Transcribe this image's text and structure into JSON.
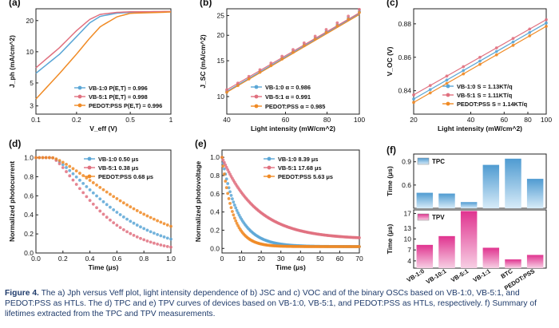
{
  "colors": {
    "blue": "#5aa6d6",
    "red": "#e0707f",
    "orange": "#f08a24",
    "axis": "#222222"
  },
  "caption": {
    "label": "Figure 4.",
    "text": "The a) Jph versus Veff plot, light intensity dependence of b) JSC and c) VOC and of the binary OSCs based on VB-1:0, VB-5:1, and PEDOT:PSS as HTLs. The d) TPC and e) TPV curves of devices based on VB-1:0, VB-5:1, and PEDOT:PSS as HTLs, respectively. f) Summary of lifetimes extracted from the TPC and TPV measurements."
  },
  "chart_data": [
    {
      "id": "a",
      "panel_label": "(a)",
      "type": "line",
      "xlabel": "V_eff (V)",
      "ylabel": "J_ph (mA/cm^2)",
      "xscale": "log",
      "yscale": "log",
      "xlim": [
        0.1,
        1
      ],
      "ylim": [
        2.5,
        26
      ],
      "xticks": [
        "0.1",
        "0.2",
        "0.5",
        "1"
      ],
      "yticks": [
        "3",
        "5",
        "10",
        "20"
      ],
      "series": [
        {
          "name": "VB-1:0",
          "legend": "VB-1:0  P(E,T) = 0.996",
          "color": "blue",
          "x": [
            0.1,
            0.15,
            0.2,
            0.25,
            0.3,
            0.4,
            0.5,
            1.0
          ],
          "y": [
            6.2,
            9.5,
            14.0,
            19.0,
            22.0,
            23.6,
            24.0,
            24.3
          ]
        },
        {
          "name": "VB-5:1",
          "legend": "VB-5:1  P(E,T) = 0.998",
          "color": "red",
          "x": [
            0.1,
            0.15,
            0.2,
            0.25,
            0.3,
            0.4,
            0.5,
            1.0
          ],
          "y": [
            7.0,
            11.0,
            16.0,
            20.5,
            23.0,
            24.0,
            24.3,
            24.5
          ]
        },
        {
          "name": "PEDOT:PSS",
          "legend": "PEDOT:PSS  P(E,T) = 0.996",
          "color": "orange",
          "x": [
            0.1,
            0.15,
            0.2,
            0.25,
            0.3,
            0.4,
            0.5,
            1.0
          ],
          "y": [
            3.5,
            6.2,
            9.5,
            13.5,
            17.5,
            21.8,
            23.5,
            24.2
          ]
        }
      ]
    },
    {
      "id": "b",
      "panel_label": "(b)",
      "type": "line",
      "xlabel": "Light intensity (mW/cm^2)",
      "ylabel": "J_SC (mA/cm^2)",
      "xscale": "log",
      "yscale": "log",
      "xlim": [
        40,
        100
      ],
      "ylim": [
        8.2,
        27
      ],
      "xticks": [
        "40",
        "60",
        "80",
        "100"
      ],
      "yticks": [
        "10",
        "15",
        "20",
        "25"
      ],
      "series": [
        {
          "name": "VB-1:0",
          "legend": "VB-1:0  α = 0.986",
          "color": "blue",
          "alpha": 0.986,
          "x": [
            40,
            100
          ],
          "y": [
            10.6,
            25.6
          ]
        },
        {
          "name": "VB-5:1",
          "legend": "VB-5:1  α = 0.991",
          "color": "red",
          "alpha": 0.991,
          "x": [
            40,
            100
          ],
          "y": [
            10.8,
            25.8
          ]
        },
        {
          "name": "PEDOT:PSS",
          "legend": "PEDOT:PSS  α = 0.985",
          "color": "orange",
          "alpha": 0.985,
          "x": [
            40,
            100
          ],
          "y": [
            10.5,
            25.3
          ]
        }
      ]
    },
    {
      "id": "c",
      "panel_label": "(c)",
      "type": "line",
      "xlabel": "Light intensity (mW/cm^2)",
      "ylabel": "V_OC (V)",
      "xscale": "log",
      "yscale": "linear",
      "xlim": [
        20,
        100
      ],
      "ylim": [
        0.826,
        0.889
      ],
      "xticks": [
        "20",
        "40",
        "60",
        "80",
        "100"
      ],
      "yticks": [
        "0.84",
        "0.86",
        "0.88"
      ],
      "series": [
        {
          "name": "VB-1:0",
          "legend": "VB-1:0  S = 1.13KT/q",
          "color": "blue",
          "x": [
            20,
            100
          ],
          "y": [
            0.835,
            0.8805
          ]
        },
        {
          "name": "VB-5:1",
          "legend": "VB-5:1  S = 1.11KT/q",
          "color": "red",
          "x": [
            20,
            100
          ],
          "y": [
            0.8375,
            0.8825
          ]
        },
        {
          "name": "PEDOT:PSS",
          "legend": "PEDOT:PSS  S = 1.14KT/q",
          "color": "orange",
          "x": [
            20,
            100
          ],
          "y": [
            0.833,
            0.8785
          ]
        }
      ]
    },
    {
      "id": "d",
      "panel_label": "(d)",
      "type": "line",
      "xlabel": "Time (μs)",
      "ylabel": "Normalized photocurrent",
      "xlim": [
        0,
        1.0
      ],
      "ylim": [
        0,
        1.08
      ],
      "xticks": [
        "0.0",
        "0.2",
        "0.4",
        "0.6",
        "0.8",
        "1.0"
      ],
      "yticks": [
        "0.0",
        "0.2",
        "0.4",
        "0.6",
        "0.8",
        "1.0"
      ],
      "series": [
        {
          "name": "VB-1:0",
          "legend": "VB-1:0  0.50 μs",
          "color": "blue",
          "tau": 0.5
        },
        {
          "name": "VB-5:1",
          "legend": "VB-5:1  0.38 μs",
          "color": "red",
          "tau": 0.38
        },
        {
          "name": "PEDOT:PSS",
          "legend": "PEDOT:PSS  0.68 μs",
          "color": "orange",
          "tau": 0.68
        }
      ]
    },
    {
      "id": "e",
      "panel_label": "(e)",
      "type": "line",
      "xlabel": "Time (μs)",
      "ylabel": "Normalized photovoltage",
      "xlim": [
        0,
        70
      ],
      "ylim": [
        -0.05,
        1.08
      ],
      "xticks": [
        "0",
        "10",
        "20",
        "30",
        "40",
        "50",
        "60",
        "70"
      ],
      "yticks": [
        "0.0",
        "0.2",
        "0.4",
        "0.6",
        "0.8",
        "1.0"
      ],
      "series": [
        {
          "name": "VB-1:0",
          "legend": "VB-1:0  8.39 μs",
          "color": "blue",
          "tau": 8.39
        },
        {
          "name": "VB-5:1",
          "legend": "VB-5:1  17.68 μs",
          "color": "red",
          "tau": 17.68
        },
        {
          "name": "PEDOT:PSS",
          "legend": "PEDOT:PSS  5.63 μs",
          "color": "orange",
          "tau": 5.63
        }
      ]
    },
    {
      "id": "f",
      "panel_label": "(f)",
      "type": "bar",
      "categories": [
        "VB-1:0",
        "VB-10:1",
        "VB-5:1",
        "VB-1:1",
        "BTC",
        "PEDOT:PSS"
      ],
      "series": [
        {
          "name": "TPC",
          "ylabel": "Time (μs)",
          "values": [
            0.5,
            0.49,
            0.38,
            0.86,
            0.94,
            0.68
          ],
          "ylim": [
            0.3,
            1.0
          ],
          "yticks": [
            "0.6",
            "0.9"
          ]
        },
        {
          "name": "TPV",
          "ylabel": "Time (μs)",
          "values": [
            8.39,
            10.8,
            17.68,
            7.6,
            4.4,
            5.63
          ],
          "ylim": [
            2,
            18
          ],
          "yticks": [
            "4",
            "7",
            "10",
            "13",
            "17"
          ]
        }
      ]
    }
  ]
}
